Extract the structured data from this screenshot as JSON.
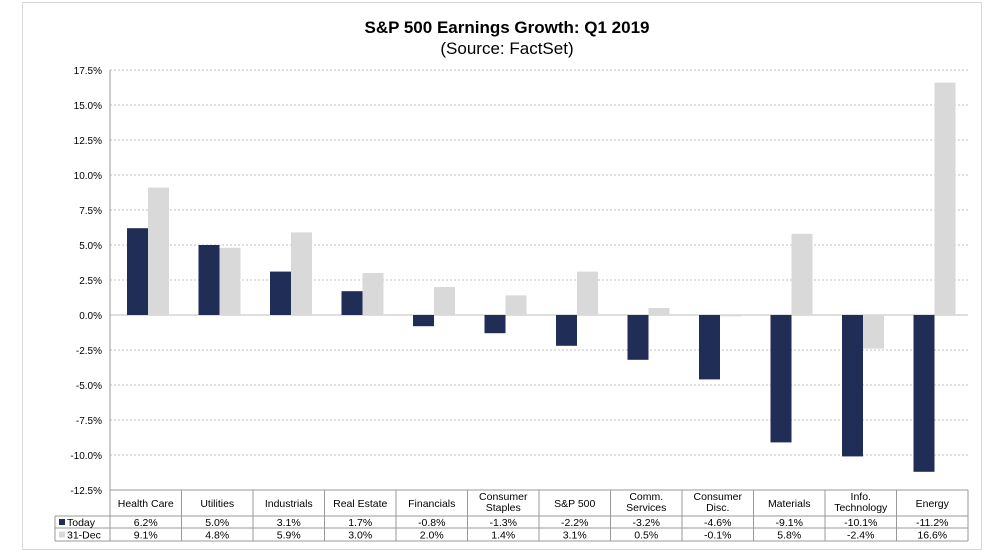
{
  "chart_data": {
    "type": "bar",
    "title": "S&P 500 Earnings Growth: Q1 2019",
    "subtitle": "(Source: FactSet)",
    "xlabel": "",
    "ylabel": "",
    "ylim": [
      -12.5,
      17.5
    ],
    "yticks": [
      "17.5%",
      "15.0%",
      "12.5%",
      "10.0%",
      "7.5%",
      "5.0%",
      "2.5%",
      "0.0%",
      "-2.5%",
      "-5.0%",
      "-7.5%",
      "-10.0%",
      "-12.5%"
    ],
    "ytick_values": [
      17.5,
      15,
      12.5,
      10,
      7.5,
      5,
      2.5,
      0,
      -2.5,
      -5,
      -7.5,
      -10,
      -12.5
    ],
    "grid": true,
    "legend": "bottom-left data table",
    "categories": [
      [
        "Health Care"
      ],
      [
        "Utilities"
      ],
      [
        "Industrials"
      ],
      [
        "Real Estate"
      ],
      [
        "Financials"
      ],
      [
        "Consumer",
        "Staples"
      ],
      [
        "S&P 500"
      ],
      [
        "Comm.",
        "Services"
      ],
      [
        "Consumer",
        "Disc."
      ],
      [
        "Materials"
      ],
      [
        "Info.",
        "Technology"
      ],
      [
        "Energy"
      ]
    ],
    "series": [
      {
        "name": "Today",
        "color": "#1f2d57",
        "values": [
          6.2,
          5.0,
          3.1,
          1.7,
          -0.8,
          -1.3,
          -2.2,
          -3.2,
          -4.6,
          -9.1,
          -10.1,
          -11.2
        ],
        "labels": [
          "6.2%",
          "5.0%",
          "3.1%",
          "1.7%",
          "-0.8%",
          "-1.3%",
          "-2.2%",
          "-3.2%",
          "-4.6%",
          "-9.1%",
          "-10.1%",
          "-11.2%"
        ]
      },
      {
        "name": "31-Dec",
        "color": "#d9d9d9",
        "values": [
          9.1,
          4.8,
          5.9,
          3.0,
          2.0,
          1.4,
          3.1,
          0.5,
          -0.1,
          5.8,
          -2.4,
          16.6
        ],
        "labels": [
          "9.1%",
          "4.8%",
          "5.9%",
          "3.0%",
          "2.0%",
          "1.4%",
          "3.1%",
          "0.5%",
          "-0.1%",
          "5.8%",
          "-2.4%",
          "16.6%"
        ]
      }
    ]
  }
}
